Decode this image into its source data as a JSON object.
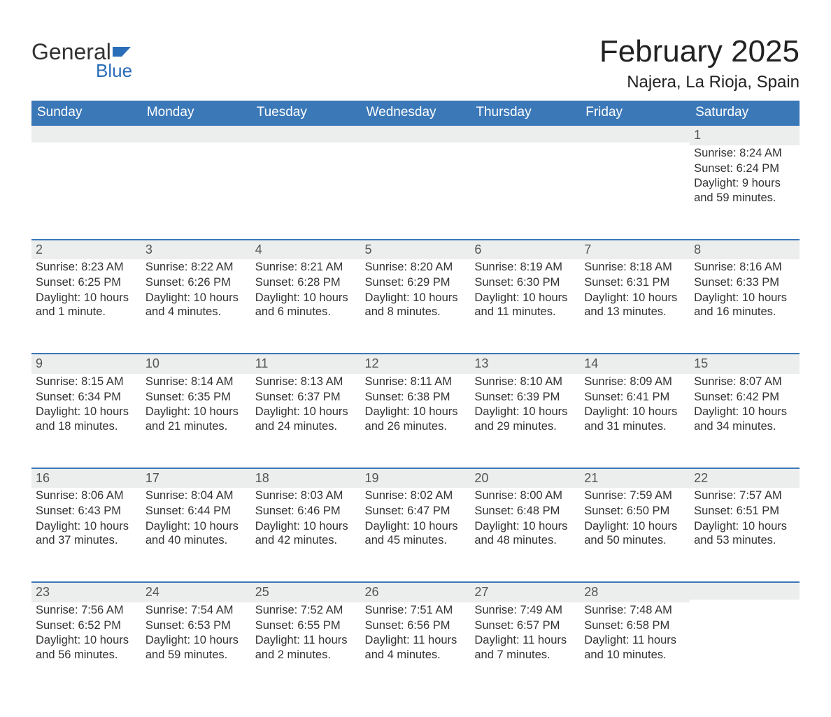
{
  "logo": {
    "word1": "General",
    "word2": "Blue",
    "flag_color": "#2a6db8"
  },
  "title": "February 2025",
  "location": "Najera, La Rioja, Spain",
  "colors": {
    "header_bg": "#3b78b8",
    "header_text": "#ffffff",
    "daynum_bg": "#eceded",
    "daynum_border": "#3b78b8",
    "body_text": "#333333"
  },
  "day_headers": [
    "Sunday",
    "Monday",
    "Tuesday",
    "Wednesday",
    "Thursday",
    "Friday",
    "Saturday"
  ],
  "weeks": [
    [
      null,
      null,
      null,
      null,
      null,
      null,
      {
        "n": "1",
        "sunrise": "8:24 AM",
        "sunset": "6:24 PM",
        "daylight": "9 hours and 59 minutes."
      }
    ],
    [
      {
        "n": "2",
        "sunrise": "8:23 AM",
        "sunset": "6:25 PM",
        "daylight": "10 hours and 1 minute."
      },
      {
        "n": "3",
        "sunrise": "8:22 AM",
        "sunset": "6:26 PM",
        "daylight": "10 hours and 4 minutes."
      },
      {
        "n": "4",
        "sunrise": "8:21 AM",
        "sunset": "6:28 PM",
        "daylight": "10 hours and 6 minutes."
      },
      {
        "n": "5",
        "sunrise": "8:20 AM",
        "sunset": "6:29 PM",
        "daylight": "10 hours and 8 minutes."
      },
      {
        "n": "6",
        "sunrise": "8:19 AM",
        "sunset": "6:30 PM",
        "daylight": "10 hours and 11 minutes."
      },
      {
        "n": "7",
        "sunrise": "8:18 AM",
        "sunset": "6:31 PM",
        "daylight": "10 hours and 13 minutes."
      },
      {
        "n": "8",
        "sunrise": "8:16 AM",
        "sunset": "6:33 PM",
        "daylight": "10 hours and 16 minutes."
      }
    ],
    [
      {
        "n": "9",
        "sunrise": "8:15 AM",
        "sunset": "6:34 PM",
        "daylight": "10 hours and 18 minutes."
      },
      {
        "n": "10",
        "sunrise": "8:14 AM",
        "sunset": "6:35 PM",
        "daylight": "10 hours and 21 minutes."
      },
      {
        "n": "11",
        "sunrise": "8:13 AM",
        "sunset": "6:37 PM",
        "daylight": "10 hours and 24 minutes."
      },
      {
        "n": "12",
        "sunrise": "8:11 AM",
        "sunset": "6:38 PM",
        "daylight": "10 hours and 26 minutes."
      },
      {
        "n": "13",
        "sunrise": "8:10 AM",
        "sunset": "6:39 PM",
        "daylight": "10 hours and 29 minutes."
      },
      {
        "n": "14",
        "sunrise": "8:09 AM",
        "sunset": "6:41 PM",
        "daylight": "10 hours and 31 minutes."
      },
      {
        "n": "15",
        "sunrise": "8:07 AM",
        "sunset": "6:42 PM",
        "daylight": "10 hours and 34 minutes."
      }
    ],
    [
      {
        "n": "16",
        "sunrise": "8:06 AM",
        "sunset": "6:43 PM",
        "daylight": "10 hours and 37 minutes."
      },
      {
        "n": "17",
        "sunrise": "8:04 AM",
        "sunset": "6:44 PM",
        "daylight": "10 hours and 40 minutes."
      },
      {
        "n": "18",
        "sunrise": "8:03 AM",
        "sunset": "6:46 PM",
        "daylight": "10 hours and 42 minutes."
      },
      {
        "n": "19",
        "sunrise": "8:02 AM",
        "sunset": "6:47 PM",
        "daylight": "10 hours and 45 minutes."
      },
      {
        "n": "20",
        "sunrise": "8:00 AM",
        "sunset": "6:48 PM",
        "daylight": "10 hours and 48 minutes."
      },
      {
        "n": "21",
        "sunrise": "7:59 AM",
        "sunset": "6:50 PM",
        "daylight": "10 hours and 50 minutes."
      },
      {
        "n": "22",
        "sunrise": "7:57 AM",
        "sunset": "6:51 PM",
        "daylight": "10 hours and 53 minutes."
      }
    ],
    [
      {
        "n": "23",
        "sunrise": "7:56 AM",
        "sunset": "6:52 PM",
        "daylight": "10 hours and 56 minutes."
      },
      {
        "n": "24",
        "sunrise": "7:54 AM",
        "sunset": "6:53 PM",
        "daylight": "10 hours and 59 minutes."
      },
      {
        "n": "25",
        "sunrise": "7:52 AM",
        "sunset": "6:55 PM",
        "daylight": "11 hours and 2 minutes."
      },
      {
        "n": "26",
        "sunrise": "7:51 AM",
        "sunset": "6:56 PM",
        "daylight": "11 hours and 4 minutes."
      },
      {
        "n": "27",
        "sunrise": "7:49 AM",
        "sunset": "6:57 PM",
        "daylight": "11 hours and 7 minutes."
      },
      {
        "n": "28",
        "sunrise": "7:48 AM",
        "sunset": "6:58 PM",
        "daylight": "11 hours and 10 minutes."
      },
      null
    ]
  ],
  "labels": {
    "sunrise": "Sunrise: ",
    "sunset": "Sunset: ",
    "daylight": "Daylight: "
  }
}
